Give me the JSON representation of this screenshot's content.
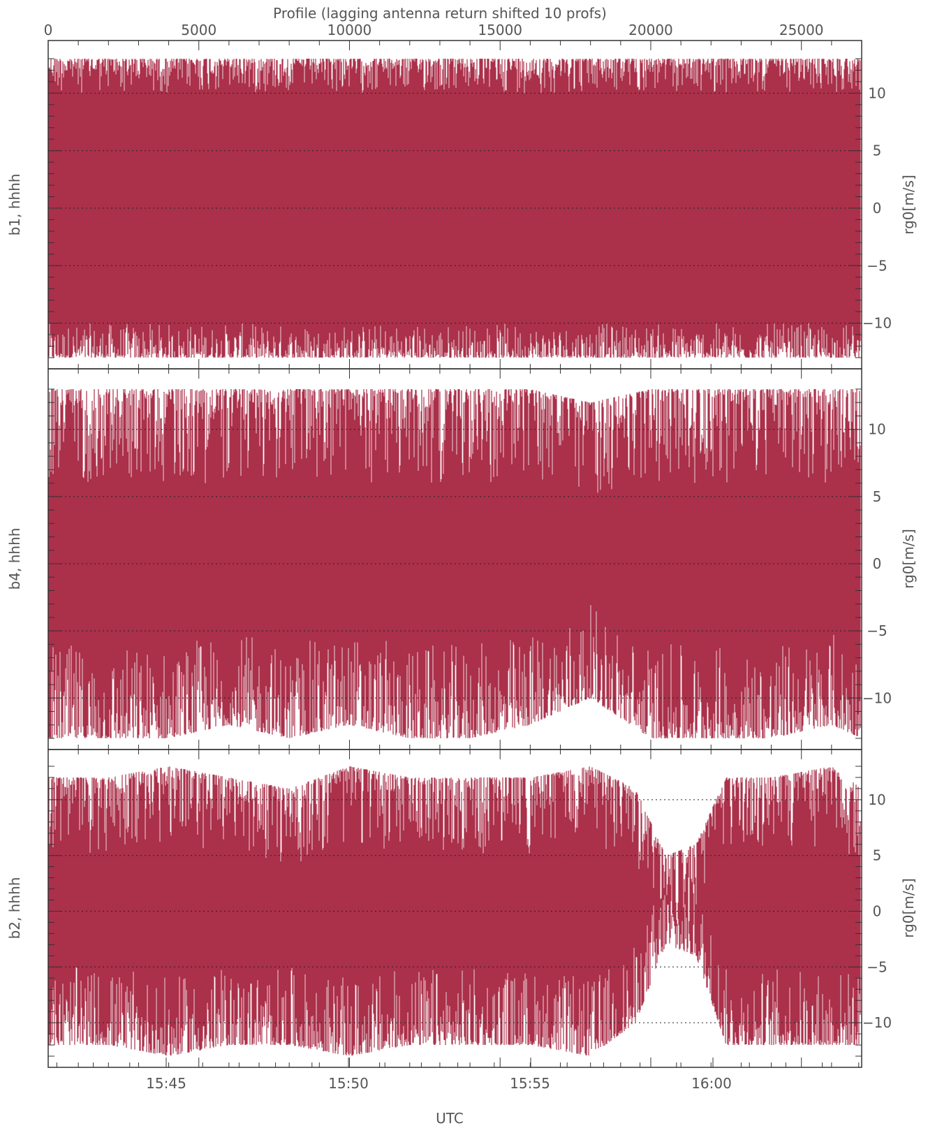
{
  "top_axis": {
    "label": "Profile (lagging antenna return shifted 10 profs)",
    "ticks": [
      0,
      5000,
      10000,
      15000,
      20000,
      25000
    ],
    "tick_labels": [
      "0",
      "5000",
      "10000",
      "15000",
      "20000",
      "25000"
    ],
    "range": [
      0,
      27000
    ]
  },
  "bottom_axis": {
    "label": "UTC",
    "tick_labels": [
      "15:45",
      "15:50",
      "15:55",
      "16:00"
    ]
  },
  "colors": {
    "series": "#ab304a",
    "grid": "#222222",
    "axis": "#333333",
    "text": "#555555"
  },
  "chart_data": [
    {
      "type": "line",
      "panel_label": "b1, hhhh",
      "ylabel": "rg0[m/s]",
      "ylim": [
        -13,
        13
      ],
      "yticks": [
        -10,
        -5,
        0,
        5,
        10
      ],
      "ytick_labels": [
        "−10",
        "−5",
        "0",
        "5",
        "10"
      ],
      "grid_y": [
        -10,
        -5,
        0,
        5,
        10
      ],
      "envelope": {
        "x": [
          0,
          2000,
          4000,
          6000,
          8000,
          10000,
          12000,
          14000,
          16000,
          18000,
          20000,
          22000,
          24000,
          26000,
          27000
        ],
        "upper": [
          13,
          13,
          13,
          13,
          13,
          13,
          13,
          13,
          13,
          13,
          13,
          13,
          13,
          13,
          13
        ],
        "lower": [
          -13,
          -13,
          -13,
          -13,
          -13,
          -13,
          -13,
          -13,
          -13,
          -13,
          -13,
          -13,
          -13,
          -13,
          -13
        ]
      }
    },
    {
      "type": "line",
      "panel_label": "b4, hhhh",
      "ylabel": "rg0[m/s]",
      "ylim": [
        -13,
        13
      ],
      "yticks": [
        -10,
        -5,
        0,
        5,
        10
      ],
      "ytick_labels": [
        "−10",
        "−5",
        "0",
        "5",
        "10"
      ],
      "grid_y": [
        -10,
        -5,
        0,
        5,
        10
      ],
      "envelope": {
        "x": [
          0,
          2000,
          4000,
          6000,
          8000,
          10000,
          12000,
          14000,
          16000,
          18000,
          20000,
          22000,
          24000,
          26000,
          27000
        ],
        "upper": [
          13,
          13,
          13,
          13,
          13,
          13,
          13,
          13,
          13,
          12,
          13,
          13,
          13,
          13,
          13
        ],
        "lower": [
          -13,
          -13,
          -13,
          -12,
          -13,
          -12,
          -13,
          -13,
          -12,
          -10,
          -13,
          -13,
          -13,
          -12,
          -13
        ]
      }
    },
    {
      "type": "line",
      "panel_label": "b2, hhhh",
      "ylabel": "rg0[m/s]",
      "ylim": [
        -13,
        13
      ],
      "yticks": [
        -10,
        -5,
        0,
        5,
        10
      ],
      "ytick_labels": [
        "−10",
        "−5",
        "0",
        "5",
        "10"
      ],
      "grid_y": [
        -10,
        -5,
        0,
        5,
        10
      ],
      "envelope": {
        "x": [
          0,
          2000,
          4000,
          6000,
          8000,
          10000,
          12000,
          14000,
          16000,
          18000,
          19500,
          20500,
          21500,
          22500,
          24000,
          26000,
          27000
        ],
        "upper": [
          12,
          12,
          13,
          12,
          11,
          13,
          12,
          12,
          12,
          13,
          11,
          5,
          6,
          12,
          12,
          13,
          11
        ],
        "lower": [
          -12,
          -12,
          -13,
          -12,
          -12,
          -13,
          -12,
          -12,
          -12,
          -13,
          -10,
          -3,
          -4,
          -12,
          -12,
          -12,
          -12
        ]
      }
    }
  ]
}
